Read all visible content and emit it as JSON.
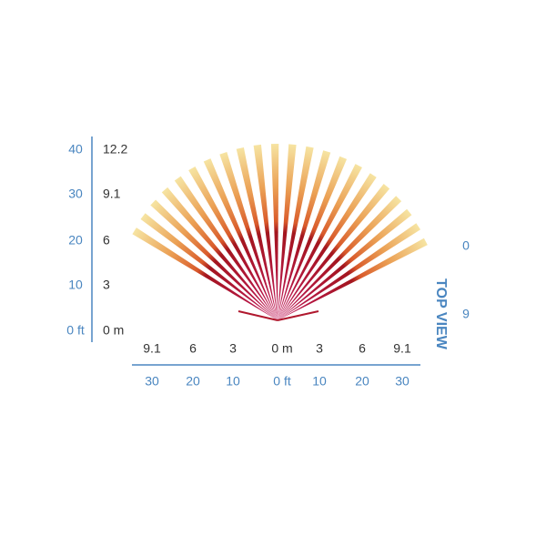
{
  "y_axis": {
    "feet": [
      "40",
      "30",
      "20",
      "10",
      "0 ft"
    ],
    "meters": [
      "12.2",
      "9.1",
      "6",
      "3",
      "0 m"
    ]
  },
  "x_axis": {
    "meters": [
      "9.1",
      "6",
      "3",
      "0 m",
      "3",
      "6",
      "9.1"
    ],
    "feet": [
      "30",
      "20",
      "10",
      "0 ft",
      "10",
      "20",
      "30"
    ]
  },
  "view_label": "TOP VIEW",
  "side_labels": [
    "0",
    "9"
  ]
}
